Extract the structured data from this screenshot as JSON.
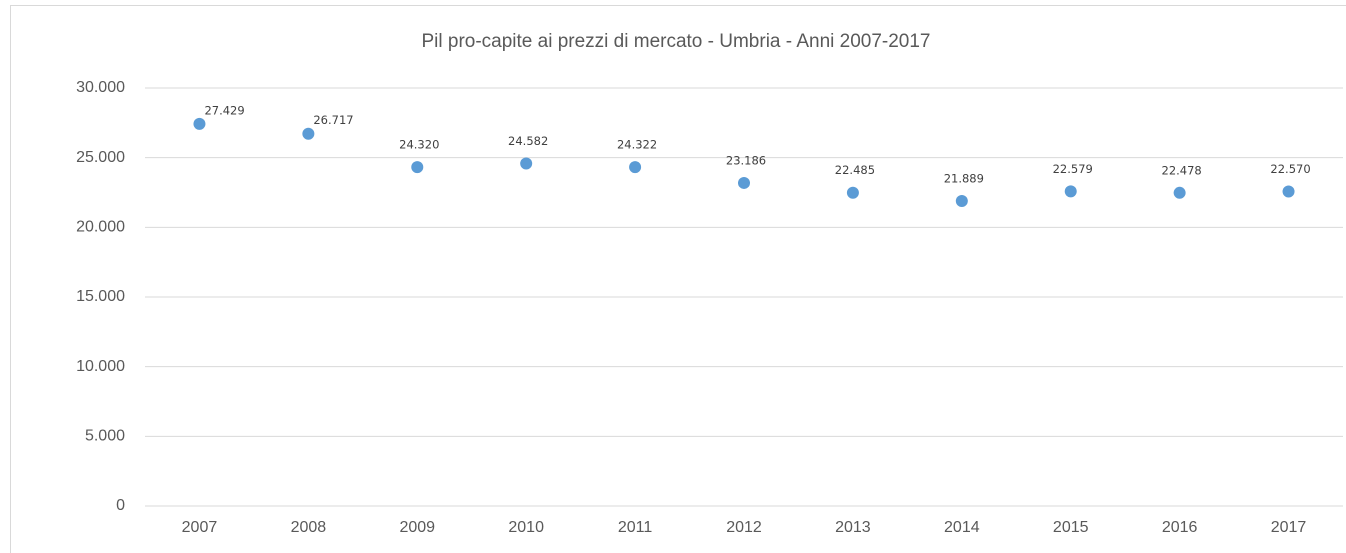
{
  "chart_data": {
    "type": "line",
    "title": "Pil pro-capite ai prezzi di mercato - Umbria - Anni 2007-2017",
    "categories": [
      "2007",
      "2008",
      "2009",
      "2010",
      "2011",
      "2012",
      "2013",
      "2014",
      "2015",
      "2016",
      "2017"
    ],
    "series": [
      {
        "name": "Pil pro-capite",
        "color": "#5b9bd5",
        "values": [
          27429,
          26717,
          24320,
          24582,
          24322,
          23186,
          22485,
          21889,
          22579,
          22478,
          22570
        ],
        "value_labels": [
          "27.429",
          "26.717",
          "24.320",
          "24.582",
          "24.322",
          "23.186",
          "22.485",
          "21.889",
          "22.579",
          "22.478",
          "22.570"
        ]
      }
    ],
    "ylim": [
      0,
      30000
    ],
    "yticks": [
      0,
      {
        "value": 5000,
        "label": "5.000"
      },
      {
        "value": 10000,
        "label": "10.000"
      },
      {
        "value": 15000,
        "label": "15.000"
      },
      {
        "value": 20000,
        "label": "20.000"
      },
      {
        "value": 25000,
        "label": "25.000"
      },
      {
        "value": 30000,
        "label": "30.000"
      }
    ],
    "grid": true
  }
}
